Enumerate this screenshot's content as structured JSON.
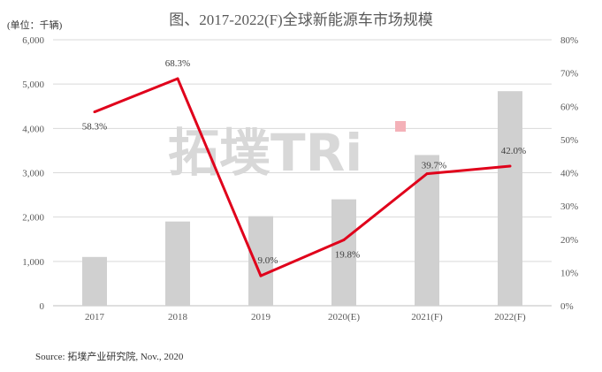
{
  "chart_data": {
    "type": "bar+line",
    "title": "图、2017-2022(F)全球新能源车市场规模",
    "unit_label": "(单位：千辆)",
    "categories": [
      "2017",
      "2018",
      "2019",
      "2020(E)",
      "2021(F)",
      "2022(F)"
    ],
    "series": [
      {
        "type": "bar",
        "axis": "left",
        "values": [
          1100,
          1900,
          2020,
          2400,
          3400,
          4840
        ],
        "color": "#d0d0d0"
      },
      {
        "type": "line",
        "axis": "right",
        "values": [
          58.3,
          68.3,
          9.0,
          19.8,
          39.7,
          42.0
        ],
        "labels": [
          "58.3%",
          "68.3%",
          "9.0%",
          "19.8%",
          "39.7%",
          "42.0%"
        ],
        "color": "#e0001b"
      }
    ],
    "ylim_left": [
      0,
      6000
    ],
    "yticks_left": [
      "0",
      "1,000",
      "2,000",
      "3,000",
      "4,000",
      "5,000",
      "6,000"
    ],
    "ylim_right": [
      0,
      80
    ],
    "yticks_right": [
      "0%",
      "10%",
      "20%",
      "30%",
      "40%",
      "50%",
      "60%",
      "70%",
      "80%"
    ],
    "grid": true,
    "legend": "none"
  },
  "watermark": "拓墣TRi",
  "source": "Source: 拓墣产业研究院, Nov., 2020"
}
